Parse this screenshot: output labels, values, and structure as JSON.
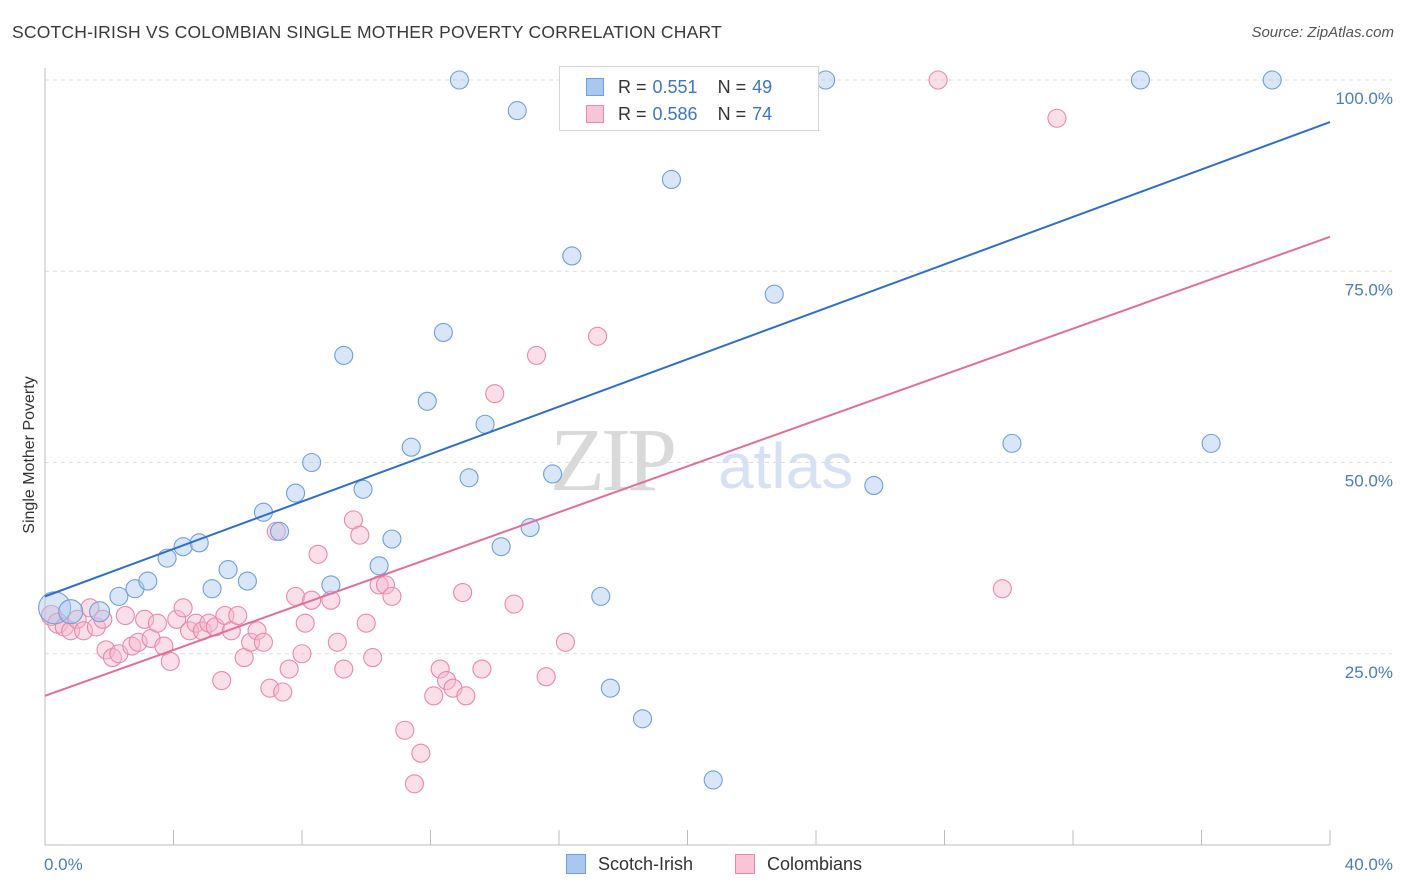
{
  "title": "SCOTCH-IRISH VS COLOMBIAN SINGLE MOTHER POVERTY CORRELATION CHART",
  "source": "Source: ZipAtlas.com",
  "watermark": {
    "zip": "ZIP",
    "atlas": "atlas"
  },
  "legend": {
    "rows": [
      {
        "r_label": "R =",
        "r_value": "0.551",
        "n_label": "N =",
        "n_value": "49"
      },
      {
        "r_label": "R =",
        "r_value": "0.586",
        "n_label": "N =",
        "n_value": "74"
      }
    ]
  },
  "bottom_legend": {
    "series1": "Scotch-Irish",
    "series2": "Colombians"
  },
  "colors": {
    "blue_fill": "#a9c8f0",
    "blue_stroke": "#6f9fdc",
    "blue_line": "#2f6fcc",
    "pink_fill": "#f7b7cb",
    "pink_stroke": "#e889a8",
    "pink_line": "#e0709a",
    "tick_text": "#4a7cc7",
    "grid": "#dcdcdc"
  },
  "chart_data": {
    "type": "scatter",
    "title": "SCOTCH-IRISH VS COLOMBIAN SINGLE MOTHER POVERTY CORRELATION CHART",
    "xlabel": "",
    "ylabel": "Single Mother Poverty",
    "xlim": [
      0,
      40
    ],
    "ylim": [
      0,
      105
    ],
    "x_tick_labels": [
      "0.0%",
      "40.0%"
    ],
    "y_ticks": [
      25,
      50,
      75,
      100
    ],
    "y_tick_labels": [
      "25.0%",
      "50.0%",
      "75.0%",
      "100.0%"
    ],
    "grid": true,
    "legend_position": "top-center",
    "series": [
      {
        "name": "Scotch-Irish",
        "r": 0.551,
        "n": 49,
        "trend": {
          "x": [
            0,
            40
          ],
          "y": [
            32.5,
            94.5
          ]
        },
        "points": [
          [
            0.3,
            31.0,
            16
          ],
          [
            0.8,
            30.5,
            12
          ],
          [
            1.7,
            30.5,
            10
          ],
          [
            2.3,
            32.5,
            9
          ],
          [
            2.8,
            33.5,
            9
          ],
          [
            3.2,
            34.5,
            9
          ],
          [
            3.8,
            37.5,
            9
          ],
          [
            4.3,
            39.0,
            9
          ],
          [
            4.8,
            39.5,
            9
          ],
          [
            5.2,
            33.5,
            9
          ],
          [
            5.7,
            36.0,
            9
          ],
          [
            6.3,
            34.5,
            9
          ],
          [
            6.8,
            43.5,
            9
          ],
          [
            7.3,
            41.0,
            9
          ],
          [
            7.8,
            46.0,
            9
          ],
          [
            8.3,
            50.0,
            9
          ],
          [
            8.9,
            34.0,
            9
          ],
          [
            9.3,
            64.0,
            9
          ],
          [
            9.9,
            46.5,
            9
          ],
          [
            10.4,
            36.5,
            9
          ],
          [
            10.8,
            40.0,
            9
          ],
          [
            11.4,
            52.0,
            9
          ],
          [
            11.9,
            58.0,
            9
          ],
          [
            12.4,
            67.0,
            9
          ],
          [
            12.9,
            100.0,
            9
          ],
          [
            13.2,
            48.0,
            9
          ],
          [
            13.7,
            55.0,
            9
          ],
          [
            14.2,
            39.0,
            9
          ],
          [
            14.7,
            96.0,
            9
          ],
          [
            15.1,
            41.5,
            9
          ],
          [
            15.8,
            48.5,
            9
          ],
          [
            16.4,
            77.0,
            9
          ],
          [
            17.3,
            32.5,
            9
          ],
          [
            17.6,
            20.5,
            9
          ],
          [
            18.6,
            16.5,
            9
          ],
          [
            18.9,
            100.0,
            9
          ],
          [
            19.5,
            87.0,
            9
          ],
          [
            20.8,
            8.5,
            9
          ],
          [
            21.2,
            100.0,
            9
          ],
          [
            21.7,
            100.0,
            9
          ],
          [
            22.5,
            100.0,
            9
          ],
          [
            22.7,
            72.0,
            9
          ],
          [
            24.3,
            100.0,
            9
          ],
          [
            25.8,
            47.0,
            9
          ],
          [
            30.1,
            52.5,
            9
          ],
          [
            34.1,
            100.0,
            9
          ],
          [
            36.3,
            52.5,
            9
          ],
          [
            38.2,
            100.0,
            9
          ],
          [
            22.0,
            100.0,
            9
          ]
        ]
      },
      {
        "name": "Colombians",
        "r": 0.586,
        "n": 74,
        "trend": {
          "x": [
            0,
            40
          ],
          "y": [
            19.5,
            79.5
          ]
        },
        "points": [
          [
            0.2,
            30.0,
            10
          ],
          [
            0.4,
            29.0,
            10
          ],
          [
            0.6,
            28.5,
            9
          ],
          [
            0.8,
            28.0,
            9
          ],
          [
            1.0,
            29.5,
            9
          ],
          [
            1.2,
            28.0,
            9
          ],
          [
            1.4,
            31.0,
            9
          ],
          [
            1.6,
            28.5,
            9
          ],
          [
            1.8,
            29.5,
            9
          ],
          [
            1.9,
            25.5,
            9
          ],
          [
            2.1,
            24.5,
            9
          ],
          [
            2.3,
            25.0,
            9
          ],
          [
            2.5,
            30.0,
            9
          ],
          [
            2.7,
            26.0,
            9
          ],
          [
            2.9,
            26.5,
            9
          ],
          [
            3.1,
            29.5,
            9
          ],
          [
            3.3,
            27.0,
            9
          ],
          [
            3.5,
            29.0,
            9
          ],
          [
            3.7,
            26.0,
            9
          ],
          [
            3.9,
            24.0,
            9
          ],
          [
            4.1,
            29.5,
            9
          ],
          [
            4.3,
            31.0,
            9
          ],
          [
            4.5,
            28.0,
            9
          ],
          [
            4.7,
            29.0,
            9
          ],
          [
            4.9,
            28.0,
            9
          ],
          [
            5.1,
            29.0,
            9
          ],
          [
            5.3,
            28.5,
            9
          ],
          [
            5.5,
            21.5,
            9
          ],
          [
            5.6,
            30.0,
            9
          ],
          [
            5.8,
            28.0,
            9
          ],
          [
            6.0,
            30.0,
            9
          ],
          [
            6.2,
            24.5,
            9
          ],
          [
            6.4,
            26.5,
            9
          ],
          [
            6.6,
            28.0,
            9
          ],
          [
            6.8,
            26.5,
            9
          ],
          [
            7.0,
            20.5,
            9
          ],
          [
            7.2,
            41.0,
            9
          ],
          [
            7.4,
            20.0,
            9
          ],
          [
            7.6,
            23.0,
            9
          ],
          [
            7.8,
            32.5,
            9
          ],
          [
            8.0,
            25.0,
            9
          ],
          [
            8.1,
            29.0,
            9
          ],
          [
            8.3,
            32.0,
            9
          ],
          [
            8.5,
            38.0,
            9
          ],
          [
            8.9,
            32.0,
            9
          ],
          [
            9.1,
            26.5,
            9
          ],
          [
            9.3,
            23.0,
            9
          ],
          [
            9.6,
            42.5,
            9
          ],
          [
            9.8,
            40.5,
            9
          ],
          [
            10.0,
            29.0,
            9
          ],
          [
            10.2,
            24.5,
            9
          ],
          [
            10.4,
            34.0,
            9
          ],
          [
            10.6,
            34.0,
            9
          ],
          [
            10.8,
            32.5,
            9
          ],
          [
            11.2,
            15.0,
            9
          ],
          [
            11.5,
            8.0,
            9
          ],
          [
            11.7,
            12.0,
            9
          ],
          [
            12.1,
            19.5,
            9
          ],
          [
            12.3,
            23.0,
            9
          ],
          [
            12.5,
            21.5,
            9
          ],
          [
            12.7,
            20.5,
            9
          ],
          [
            13.0,
            33.0,
            9
          ],
          [
            13.1,
            19.5,
            9
          ],
          [
            13.6,
            23.0,
            9
          ],
          [
            14.0,
            59.0,
            9
          ],
          [
            14.6,
            31.5,
            9
          ],
          [
            15.3,
            64.0,
            9
          ],
          [
            15.6,
            22.0,
            9
          ],
          [
            16.2,
            26.5,
            9
          ],
          [
            17.2,
            66.5,
            9
          ],
          [
            27.8,
            100.0,
            9
          ],
          [
            29.8,
            33.5,
            9
          ],
          [
            31.5,
            95.0,
            9
          ],
          [
            22.5,
            100.0,
            9
          ]
        ]
      }
    ]
  }
}
